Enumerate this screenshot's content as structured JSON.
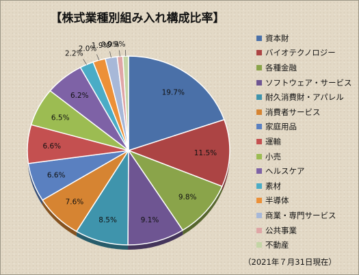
{
  "chart_data": {
    "type": "pie",
    "title": "【株式業種別組み入れ構成比率】",
    "note": "（2021年７月31日現在）",
    "legend_position": "right",
    "unit": "%",
    "slices": [
      {
        "name": "資本財",
        "value": 19.7,
        "label": "19.7%",
        "color": "#4a70a8"
      },
      {
        "name": "バイオテクノロジー",
        "value": 11.5,
        "label": "11.5%",
        "color": "#ac4444"
      },
      {
        "name": "各種金融",
        "value": 9.8,
        "label": "9.8%",
        "color": "#8aa44a"
      },
      {
        "name": "ソフトウェア・サービス",
        "value": 9.1,
        "label": "9.1%",
        "color": "#6e5592"
      },
      {
        "name": "耐久消費財・アパレル",
        "value": 8.5,
        "label": "8.5%",
        "color": "#3f94ac"
      },
      {
        "name": "消費者サービス",
        "value": 7.6,
        "label": "7.6%",
        "color": "#d68432"
      },
      {
        "name": "家庭用品",
        "value": 6.6,
        "label": "6.6%",
        "color": "#5a80c0"
      },
      {
        "name": "運輸",
        "value": 6.6,
        "label": "6.6%",
        "color": "#c45050"
      },
      {
        "name": "小売",
        "value": 6.5,
        "label": "6.5%",
        "color": "#9cbc52"
      },
      {
        "name": "ヘルスケア",
        "value": 6.2,
        "label": "6.2%",
        "color": "#7e62a6"
      },
      {
        "name": "素材",
        "value": 2.2,
        "label": "2.2%",
        "color": "#4aacc6"
      },
      {
        "name": "半導体",
        "value": 2.0,
        "label": "2.0%",
        "color": "#ec9038"
      },
      {
        "name": "商業・専門サービス",
        "value": 1.9,
        "label": "1.9%",
        "color": "#a7b8d8"
      },
      {
        "name": "公共事業",
        "value": 0.9,
        "label": "0.9%",
        "color": "#dfa6a6"
      },
      {
        "name": "不動産",
        "value": 0.9,
        "label": "0.9%",
        "color": "#c4d6a6"
      }
    ]
  }
}
